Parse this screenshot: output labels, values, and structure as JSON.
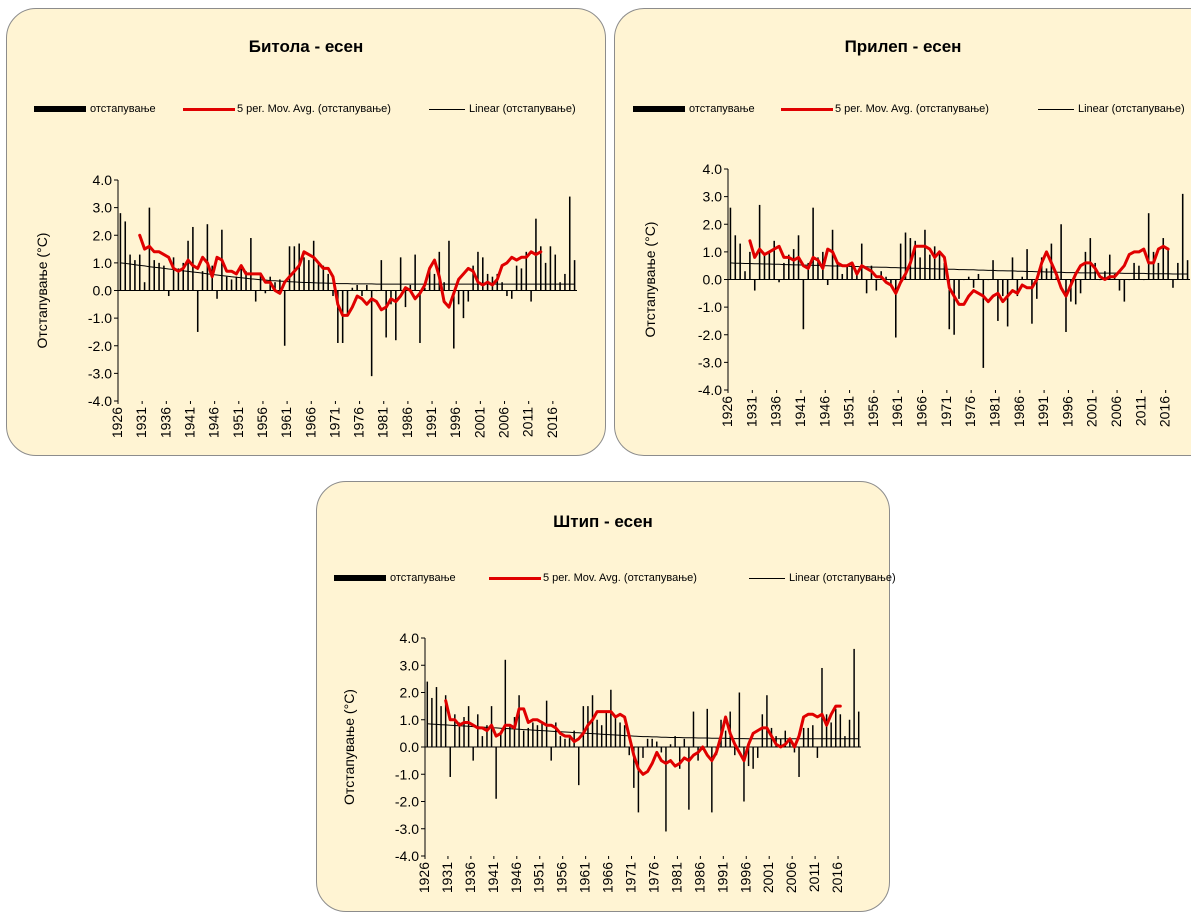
{
  "colors": {
    "panel_bg": "#fff4d3",
    "bars": "#000000",
    "moving_average": "#e00000",
    "trend": "#000000"
  },
  "chart_data": [
    {
      "type": "bar",
      "title": "Битола  - есен",
      "ylabel": "Отстапување (°C)",
      "ylim": [
        -4,
        4
      ],
      "yticks": [
        "4.0",
        "3.0",
        "2.0",
        "1.0",
        "0.0",
        "-1.0",
        "-2.0",
        "-3.0",
        "-4.0"
      ],
      "xticks": [
        "1926",
        "1931",
        "1936",
        "1941",
        "1946",
        "1951",
        "1956",
        "1961",
        "1966",
        "1971",
        "1976",
        "1981",
        "1986",
        "1991",
        "1996",
        "2001",
        "2006",
        "2011",
        "2016"
      ],
      "x_start": 1926,
      "x_end": 2020,
      "legend": [
        "отстапување",
        "5 per. Mov. Avg. (отстапување)",
        "Linear (отстапување)"
      ],
      "series": [
        {
          "name": "отстапување",
          "type": "bar",
          "values": [
            2.8,
            2.5,
            1.3,
            1.1,
            1.3,
            0.3,
            3.0,
            1.1,
            1.0,
            0.9,
            -0.2,
            1.2,
            0.8,
            1.0,
            1.8,
            2.3,
            -1.5,
            0.7,
            2.4,
            0.9,
            -0.3,
            2.2,
            0.5,
            0.4,
            0.5,
            0.8,
            0.7,
            1.9,
            -0.4,
            0.6,
            -0.1,
            0.5,
            0.3,
            0.4,
            -2.0,
            1.6,
            1.6,
            1.7,
            1.2,
            1.1,
            1.8,
            1.0,
            0.9,
            0.6,
            -0.2,
            -1.9,
            -1.9,
            -0.9,
            0.1,
            0.2,
            -0.2,
            0.2,
            -3.1,
            0.0,
            1.1,
            -1.7,
            -0.5,
            -1.8,
            1.2,
            -0.6,
            0.2,
            1.3,
            -1.9,
            0.1,
            0.8,
            0.6,
            1.4,
            0.3,
            1.8,
            -2.1,
            -0.5,
            -1.0,
            -0.4,
            0.9,
            1.4,
            1.2,
            0.6,
            0.5,
            0.6,
            0.3,
            -0.2,
            -0.3,
            0.9,
            0.8,
            1.4,
            -0.4,
            2.6,
            1.6,
            1.0,
            1.6,
            1.3,
            0.3,
            0.6,
            3.4,
            1.1
          ]
        },
        {
          "name": "5 per. Mov. Avg. (отстапување)",
          "type": "line",
          "values": [
            null,
            null,
            null,
            null,
            2.0,
            1.5,
            1.6,
            1.4,
            1.4,
            1.3,
            1.2,
            0.8,
            0.7,
            0.8,
            1.1,
            0.9,
            0.8,
            1.2,
            1.0,
            0.5,
            1.2,
            1.1,
            0.7,
            0.7,
            0.6,
            0.9,
            0.6,
            0.6,
            0.6,
            0.6,
            0.3,
            0.3,
            0.0,
            -0.1,
            0.3,
            0.5,
            0.7,
            0.9,
            1.4,
            1.3,
            1.2,
            1.0,
            0.8,
            0.8,
            0.5,
            -0.5,
            -0.9,
            -0.9,
            -0.6,
            -0.2,
            -0.3,
            -0.5,
            -0.3,
            -0.4,
            -0.7,
            -0.6,
            -0.3,
            -0.4,
            -0.2,
            0.1,
            0.0,
            -0.3,
            -0.1,
            0.2,
            0.8,
            1.1,
            0.5,
            -0.4,
            -0.6,
            -0.1,
            0.4,
            0.6,
            0.8,
            0.7,
            0.3,
            0.2,
            0.3,
            0.2,
            0.4,
            0.9,
            1.0,
            1.2,
            1.1,
            1.2,
            1.2,
            1.4,
            1.3,
            1.4
          ]
        },
        {
          "name": "Linear (отстапување)",
          "type": "line",
          "values": [
            1.0,
            0.98,
            0.96,
            0.93,
            0.91,
            0.89,
            0.86,
            0.84,
            0.82,
            0.8,
            0.78,
            0.76,
            0.74,
            0.71,
            0.69,
            0.67,
            0.65,
            0.63,
            0.6,
            0.58,
            0.56,
            0.54,
            0.52,
            0.5,
            0.48,
            0.46,
            0.44,
            0.42,
            0.41,
            0.39,
            0.38,
            0.36,
            0.35,
            0.34,
            0.33,
            0.32,
            0.31,
            0.3,
            0.29,
            0.29,
            0.28,
            0.27,
            0.27,
            0.26,
            0.26,
            0.25,
            0.25,
            0.25,
            0.24,
            0.24,
            0.24,
            0.24,
            0.24,
            0.23,
            0.23,
            0.23,
            0.23,
            0.23,
            0.23,
            0.23,
            0.23,
            0.23,
            0.23,
            0.23,
            0.23,
            0.23,
            0.23,
            0.23,
            0.23,
            0.23,
            0.23,
            0.23,
            0.23,
            0.23,
            0.23,
            0.23,
            0.23,
            0.23,
            0.23,
            0.23,
            0.23,
            0.23,
            0.23,
            0.23,
            0.23,
            0.23,
            0.23,
            0.23,
            0.23,
            0.23,
            0.23,
            0.23,
            0.23,
            0.23,
            0.23
          ]
        }
      ]
    },
    {
      "type": "bar",
      "title": "Прилеп - есен",
      "ylabel": "Отстапување (°C)",
      "ylim": [
        -4,
        4
      ],
      "yticks": [
        "4.0",
        "3.0",
        "2.0",
        "1.0",
        "0.0",
        "-1.0",
        "-2.0",
        "-3.0",
        "-4.0"
      ],
      "xticks": [
        "1926",
        "1931",
        "1936",
        "1941",
        "1946",
        "1951",
        "1956",
        "1961",
        "1966",
        "1971",
        "1976",
        "1981",
        "1986",
        "1991",
        "1996",
        "2001",
        "2006",
        "2011",
        "2016"
      ],
      "x_start": 1926,
      "x_end": 2020,
      "legend": [
        "отстапување",
        "5 per. Mov. Avg. (отстапување)",
        "Linear (отстапување)"
      ],
      "series": [
        {
          "name": "отстапување",
          "type": "bar",
          "values": [
            2.6,
            1.6,
            1.3,
            0.3,
            1.0,
            -0.4,
            2.7,
            0.9,
            1.0,
            1.4,
            -0.1,
            0.6,
            0.9,
            1.1,
            1.6,
            -1.8,
            0.6,
            2.6,
            0.8,
            1.0,
            -0.2,
            1.8,
            0.6,
            0.2,
            0.5,
            0.6,
            0.2,
            1.3,
            -0.5,
            0.5,
            -0.4,
            0.3,
            0.1,
            -0.2,
            -2.1,
            1.3,
            1.7,
            1.5,
            1.4,
            0.8,
            1.8,
            0.9,
            1.2,
            1.0,
            0.6,
            -1.8,
            -2.0,
            -0.7,
            0.0,
            0.1,
            -0.3,
            0.2,
            -3.2,
            0.0,
            0.7,
            -1.5,
            -0.6,
            -1.7,
            0.8,
            -0.6,
            0.1,
            1.1,
            -1.6,
            -0.7,
            0.8,
            0.4,
            1.3,
            0.1,
            2.0,
            -1.9,
            -0.8,
            -0.9,
            -0.5,
            1.0,
            1.5,
            0.6,
            0.0,
            0.3,
            0.9,
            0.2,
            -0.4,
            -0.8,
            0.0,
            0.6,
            0.5,
            0.0,
            2.4,
            1.0,
            0.6,
            1.5,
            1.1,
            -0.3,
            0.6,
            3.1,
            0.7
          ]
        },
        {
          "name": "5 per. Mov. Avg. (отстапување)",
          "type": "line",
          "values": [
            null,
            null,
            null,
            null,
            1.4,
            0.8,
            1.1,
            0.9,
            1.0,
            1.1,
            1.2,
            0.8,
            0.8,
            0.7,
            0.8,
            0.5,
            0.4,
            0.8,
            0.7,
            0.4,
            1.1,
            1.0,
            0.6,
            0.5,
            0.5,
            0.6,
            0.2,
            0.5,
            0.4,
            0.3,
            0.1,
            0.1,
            -0.1,
            -0.2,
            -0.5,
            -0.1,
            0.2,
            0.6,
            1.2,
            1.2,
            1.2,
            1.1,
            0.8,
            1.0,
            0.8,
            -0.3,
            -0.6,
            -0.9,
            -0.9,
            -0.6,
            -0.4,
            -0.5,
            -0.6,
            -0.8,
            -0.6,
            -0.5,
            -0.8,
            -0.6,
            -0.4,
            -0.5,
            -0.2,
            -0.3,
            -0.3,
            0.0,
            0.6,
            1.0,
            0.6,
            0.2,
            -0.3,
            -0.6,
            -0.2,
            0.2,
            0.5,
            0.6,
            0.6,
            0.4,
            0.1,
            0.0,
            0.1,
            0.1,
            0.3,
            0.5,
            0.9,
            1.0,
            1.0,
            1.1,
            0.6,
            0.6,
            1.1,
            1.2,
            1.1
          ]
        },
        {
          "name": "Linear (отстапување)",
          "type": "line",
          "values": [
            0.6,
            0.59,
            0.59,
            0.58,
            0.58,
            0.57,
            0.57,
            0.56,
            0.56,
            0.55,
            0.55,
            0.54,
            0.54,
            0.53,
            0.53,
            0.52,
            0.52,
            0.51,
            0.51,
            0.5,
            0.5,
            0.49,
            0.49,
            0.48,
            0.48,
            0.47,
            0.47,
            0.46,
            0.46,
            0.45,
            0.45,
            0.44,
            0.44,
            0.43,
            0.43,
            0.42,
            0.42,
            0.41,
            0.41,
            0.4,
            0.4,
            0.39,
            0.39,
            0.38,
            0.38,
            0.37,
            0.37,
            0.36,
            0.36,
            0.35,
            0.35,
            0.34,
            0.34,
            0.33,
            0.33,
            0.32,
            0.32,
            0.31,
            0.31,
            0.3,
            0.3,
            0.29,
            0.29,
            0.28,
            0.28,
            0.27,
            0.27,
            0.26,
            0.26,
            0.25,
            0.25,
            0.25,
            0.24,
            0.24,
            0.24,
            0.24,
            0.23,
            0.23,
            0.23,
            0.23,
            0.23,
            0.22,
            0.22,
            0.22,
            0.22,
            0.22,
            0.21,
            0.21,
            0.21,
            0.21,
            0.21,
            0.2,
            0.2,
            0.2,
            0.2
          ]
        }
      ]
    },
    {
      "type": "bar",
      "title": "Штип - есен",
      "ylabel": "Отстапување (°C)",
      "ylim": [
        -4,
        4
      ],
      "yticks": [
        "4.0",
        "3.0",
        "2.0",
        "1.0",
        "0.0",
        "-1.0",
        "-2.0",
        "-3.0",
        "-4.0"
      ],
      "xticks": [
        "1926",
        "1931",
        "1936",
        "1941",
        "1946",
        "1951",
        "1956",
        "1961",
        "1966",
        "1971",
        "1976",
        "1981",
        "1986",
        "1991",
        "1996",
        "2001",
        "2006",
        "2011",
        "2016"
      ],
      "x_start": 1926,
      "x_end": 2020,
      "legend": [
        "отстапување",
        "5 per. Mov. Avg. (отстапување)",
        "Linear (отстапување)"
      ],
      "series": [
        {
          "name": "отстапување",
          "type": "bar",
          "values": [
            2.4,
            1.8,
            2.2,
            1.5,
            1.9,
            -1.1,
            1.2,
            0.9,
            1.1,
            1.5,
            -0.5,
            1.2,
            0.4,
            0.8,
            1.5,
            -1.9,
            0.5,
            3.2,
            0.8,
            1.1,
            1.9,
            0.6,
            0.7,
            0.9,
            0.8,
            0.9,
            1.7,
            -0.5,
            0.9,
            0.4,
            0.3,
            0.4,
            0.6,
            -1.4,
            1.5,
            1.5,
            1.9,
            1.0,
            0.8,
            1.3,
            2.1,
            1.1,
            0.9,
            0.8,
            -0.3,
            -1.5,
            -2.4,
            -0.4,
            0.3,
            0.3,
            0.2,
            -0.2,
            -3.1,
            0.1,
            0.4,
            -0.8,
            0.3,
            -2.3,
            1.3,
            -0.5,
            -0.1,
            1.4,
            -2.4,
            -0.3,
            1.0,
            0.6,
            1.3,
            -0.3,
            2.0,
            -2.0,
            -0.7,
            -0.8,
            -0.4,
            1.2,
            1.9,
            0.7,
            0.4,
            0.3,
            0.6,
            0.2,
            -0.2,
            -1.1,
            0.7,
            0.7,
            0.8,
            -0.4,
            2.9,
            1.2,
            0.9,
            1.4,
            1.2,
            0.4,
            1.0,
            3.6,
            1.3
          ]
        },
        {
          "name": "5 per. Mov. Avg. (отстапување)",
          "type": "line",
          "values": [
            null,
            null,
            null,
            null,
            1.7,
            1.0,
            1.0,
            0.8,
            0.9,
            0.9,
            0.8,
            0.7,
            0.7,
            0.6,
            0.8,
            0.4,
            0.5,
            0.8,
            0.8,
            0.7,
            1.4,
            1.4,
            0.9,
            1.0,
            1.0,
            0.9,
            0.8,
            0.8,
            0.7,
            0.5,
            0.4,
            0.4,
            0.2,
            0.3,
            0.5,
            0.8,
            1.0,
            1.3,
            1.3,
            1.3,
            1.3,
            1.1,
            1.2,
            1.1,
            0.4,
            -0.3,
            -0.8,
            -1.0,
            -0.9,
            -0.6,
            -0.2,
            -0.5,
            -0.6,
            -0.5,
            -0.7,
            -0.6,
            -0.4,
            -0.5,
            -0.3,
            -0.2,
            0.0,
            -0.3,
            -0.5,
            -0.2,
            0.4,
            1.1,
            0.5,
            0.1,
            -0.2,
            -0.5,
            0.1,
            0.5,
            0.6,
            0.7,
            0.7,
            0.4,
            0.1,
            0.0,
            0.1,
            0.3,
            0.0,
            0.4,
            1.1,
            1.2,
            1.2,
            1.1,
            1.2,
            0.8,
            1.2,
            1.5,
            1.5
          ]
        },
        {
          "name": "Linear (отстапување)",
          "type": "line",
          "values": [
            0.85,
            0.84,
            0.83,
            0.82,
            0.81,
            0.8,
            0.79,
            0.78,
            0.77,
            0.76,
            0.75,
            0.74,
            0.73,
            0.72,
            0.71,
            0.7,
            0.69,
            0.68,
            0.67,
            0.66,
            0.65,
            0.64,
            0.63,
            0.62,
            0.61,
            0.6,
            0.59,
            0.58,
            0.57,
            0.56,
            0.55,
            0.54,
            0.53,
            0.52,
            0.51,
            0.5,
            0.49,
            0.48,
            0.47,
            0.46,
            0.45,
            0.44,
            0.43,
            0.42,
            0.41,
            0.4,
            0.39,
            0.38,
            0.38,
            0.37,
            0.37,
            0.36,
            0.36,
            0.35,
            0.35,
            0.35,
            0.34,
            0.34,
            0.34,
            0.33,
            0.33,
            0.33,
            0.32,
            0.32,
            0.32,
            0.32,
            0.31,
            0.31,
            0.31,
            0.31,
            0.3,
            0.3,
            0.3,
            0.3,
            0.3,
            0.3,
            0.3,
            0.3,
            0.3,
            0.3,
            0.3,
            0.3,
            0.3,
            0.3,
            0.3,
            0.3,
            0.3,
            0.3,
            0.3,
            0.3,
            0.3,
            0.3,
            0.3,
            0.3,
            0.3
          ]
        }
      ]
    }
  ]
}
